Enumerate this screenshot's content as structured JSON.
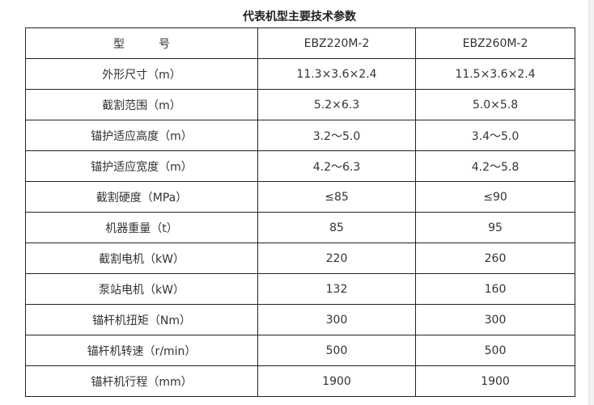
{
  "title": "代表机型主要技术参数",
  "table": {
    "rows": [
      [
        "型　　　号",
        "EBZ220M-2",
        "EBZ260M-2"
      ],
      [
        "外形尺寸（m）",
        "11.3×3.6×2.4",
        "11.5×3.6×2.4"
      ],
      [
        "截割范围（m）",
        "5.2×6.3",
        "5.0×5.8"
      ],
      [
        "锚护适应高度（m）",
        "3.2～5.0",
        "3.4～5.0"
      ],
      [
        "锚护适应宽度（m）",
        "4.2～6.3",
        "4.2～5.8"
      ],
      [
        "截割硬度（MPa）",
        "≤85",
        "≤90"
      ],
      [
        "机器重量（t）",
        "85",
        "95"
      ],
      [
        "截割电机（kW）",
        "220",
        "260"
      ],
      [
        "泵站电机（kW）",
        "132",
        "160"
      ],
      [
        "锚杆机扭矩（Nm）",
        "300",
        "300"
      ],
      [
        "锚杆机转速（r/min）",
        "500",
        "500"
      ],
      [
        "锚杆机行程（mm）",
        "1900",
        "1900"
      ]
    ]
  }
}
